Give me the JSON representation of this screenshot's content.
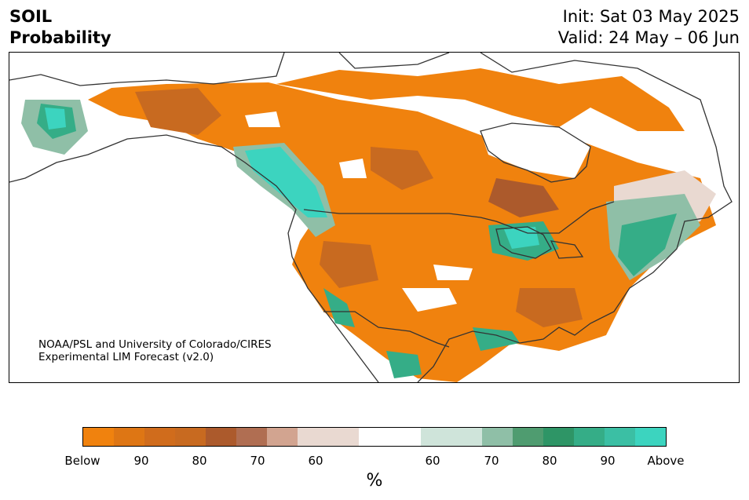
{
  "header": {
    "title_line1": "SOIL",
    "title_line2": "Probability",
    "init": "Init: Sat 03 May 2025",
    "valid": "Valid: 24 May – 06 Jun"
  },
  "credit": {
    "line1": "NOAA/PSL and University of Colorado/CIRES",
    "line2": "Experimental LIM Forecast (v2.0)"
  },
  "colorbar": {
    "unit": "%",
    "colors": [
      "#f0820e",
      "#de7614",
      "#d06c1c",
      "#c86a20",
      "#ac5a2c",
      "#b06e52",
      "#d2a490",
      "#e9d9d1",
      "#ffffff",
      "#cfe4da",
      "#8fbfa7",
      "#4f9c70",
      "#2e9566",
      "#35ad87",
      "#3bbfa4",
      "#3cd4bf"
    ],
    "tick_labels": [
      "Below",
      "90",
      "80",
      "70",
      "60",
      "60",
      "70",
      "80",
      "90",
      "Above"
    ]
  },
  "map": {
    "colors": {
      "below_strong": "#f0820e",
      "below_mid": "#c86a20",
      "below_dark": "#ac5a2c",
      "below_light": "#e9d9d1",
      "neutral": "#ffffff",
      "above_light": "#cfe4da",
      "above_mid": "#8fbfa7",
      "above_strong": "#35ad87",
      "above_max": "#3cd4bf",
      "border": "#333333"
    }
  }
}
